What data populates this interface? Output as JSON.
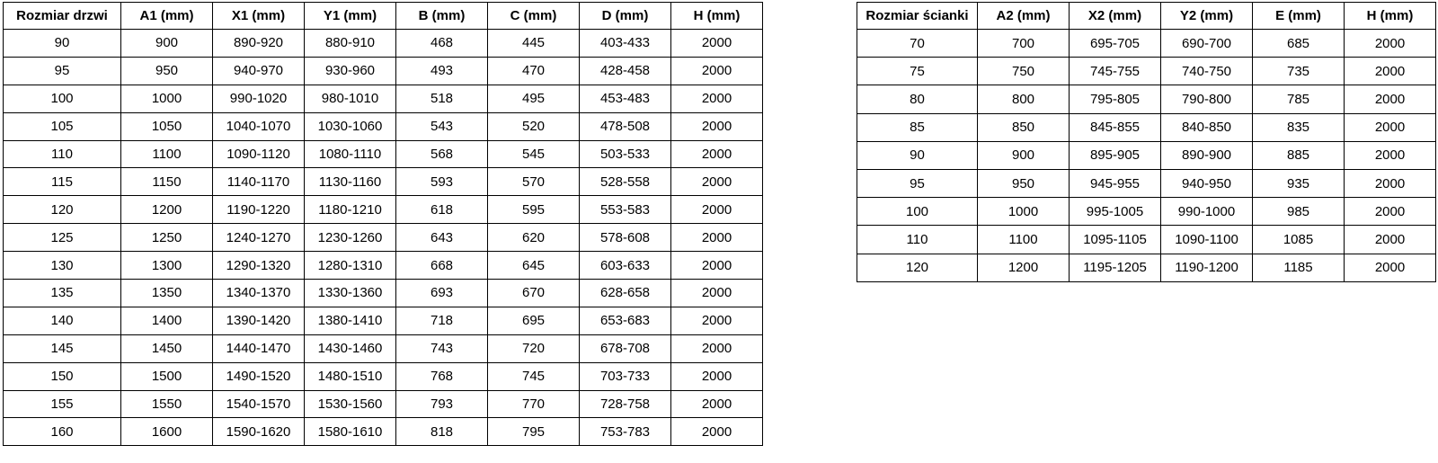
{
  "page": {
    "background": "#ffffff",
    "text_color": "#000000",
    "border_color": "#000000"
  },
  "door_table": {
    "headers": [
      "Rozmiar drzwi",
      "A1 (mm)",
      "X1 (mm)",
      "Y1 (mm)",
      "B (mm)",
      "C (mm)",
      "D (mm)",
      "H (mm)"
    ],
    "rows": [
      [
        "90",
        "900",
        "890-920",
        "880-910",
        "468",
        "445",
        "403-433",
        "2000"
      ],
      [
        "95",
        "950",
        "940-970",
        "930-960",
        "493",
        "470",
        "428-458",
        "2000"
      ],
      [
        "100",
        "1000",
        "990-1020",
        "980-1010",
        "518",
        "495",
        "453-483",
        "2000"
      ],
      [
        "105",
        "1050",
        "1040-1070",
        "1030-1060",
        "543",
        "520",
        "478-508",
        "2000"
      ],
      [
        "110",
        "1100",
        "1090-1120",
        "1080-1110",
        "568",
        "545",
        "503-533",
        "2000"
      ],
      [
        "115",
        "1150",
        "1140-1170",
        "1130-1160",
        "593",
        "570",
        "528-558",
        "2000"
      ],
      [
        "120",
        "1200",
        "1190-1220",
        "1180-1210",
        "618",
        "595",
        "553-583",
        "2000"
      ],
      [
        "125",
        "1250",
        "1240-1270",
        "1230-1260",
        "643",
        "620",
        "578-608",
        "2000"
      ],
      [
        "130",
        "1300",
        "1290-1320",
        "1280-1310",
        "668",
        "645",
        "603-633",
        "2000"
      ],
      [
        "135",
        "1350",
        "1340-1370",
        "1330-1360",
        "693",
        "670",
        "628-658",
        "2000"
      ],
      [
        "140",
        "1400",
        "1390-1420",
        "1380-1410",
        "718",
        "695",
        "653-683",
        "2000"
      ],
      [
        "145",
        "1450",
        "1440-1470",
        "1430-1460",
        "743",
        "720",
        "678-708",
        "2000"
      ],
      [
        "150",
        "1500",
        "1490-1520",
        "1480-1510",
        "768",
        "745",
        "703-733",
        "2000"
      ],
      [
        "155",
        "1550",
        "1540-1570",
        "1530-1560",
        "793",
        "770",
        "728-758",
        "2000"
      ],
      [
        "160",
        "1600",
        "1590-1620",
        "1580-1610",
        "818",
        "795",
        "753-783",
        "2000"
      ]
    ]
  },
  "wall_table": {
    "headers": [
      "Rozmiar ścianki",
      "A2 (mm)",
      "X2 (mm)",
      "Y2 (mm)",
      "E (mm)",
      "H (mm)"
    ],
    "rows": [
      [
        "70",
        "700",
        "695-705",
        "690-700",
        "685",
        "2000"
      ],
      [
        "75",
        "750",
        "745-755",
        "740-750",
        "735",
        "2000"
      ],
      [
        "80",
        "800",
        "795-805",
        "790-800",
        "785",
        "2000"
      ],
      [
        "85",
        "850",
        "845-855",
        "840-850",
        "835",
        "2000"
      ],
      [
        "90",
        "900",
        "895-905",
        "890-900",
        "885",
        "2000"
      ],
      [
        "95",
        "950",
        "945-955",
        "940-950",
        "935",
        "2000"
      ],
      [
        "100",
        "1000",
        "995-1005",
        "990-1000",
        "985",
        "2000"
      ],
      [
        "110",
        "1100",
        "1095-1105",
        "1090-1100",
        "1085",
        "2000"
      ],
      [
        "120",
        "1200",
        "1195-1205",
        "1190-1200",
        "1185",
        "2000"
      ]
    ]
  }
}
